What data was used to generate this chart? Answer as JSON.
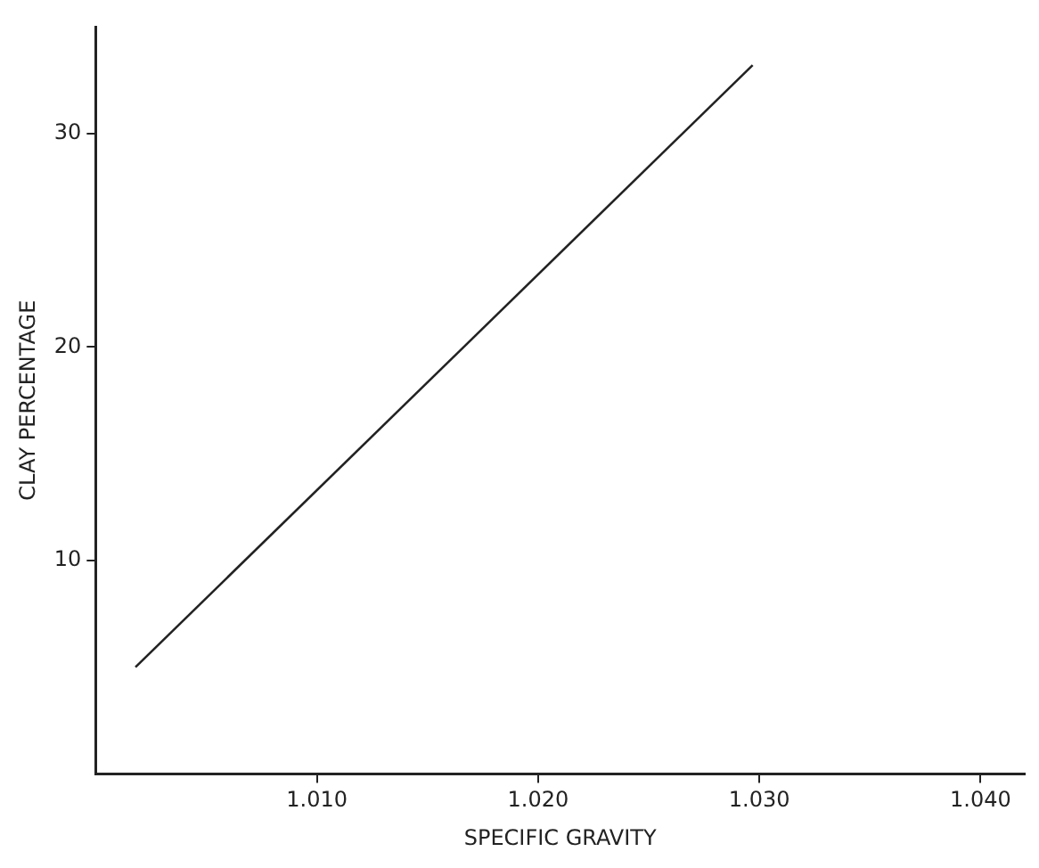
{
  "chart_data": {
    "type": "line",
    "xlabel": "SPECIFIC GRAVITY",
    "ylabel": "CLAY PERCENTAGE",
    "x": [
      1.0018,
      1.0297
    ],
    "series": [
      {
        "color": "#222222",
        "values": [
          5.0,
          33.2
        ]
      }
    ],
    "xlim": [
      1.0,
      1.042
    ],
    "ylim": [
      0,
      35
    ],
    "xticks": [
      {
        "value": 1.01,
        "label": "1.010"
      },
      {
        "value": 1.02,
        "label": "1.020"
      },
      {
        "value": 1.03,
        "label": "1.030"
      },
      {
        "value": 1.04,
        "label": "1.040"
      }
    ],
    "yticks": [
      10,
      20,
      30
    ],
    "grid": false,
    "legend": false,
    "marker": "none",
    "line_style": "solid"
  }
}
